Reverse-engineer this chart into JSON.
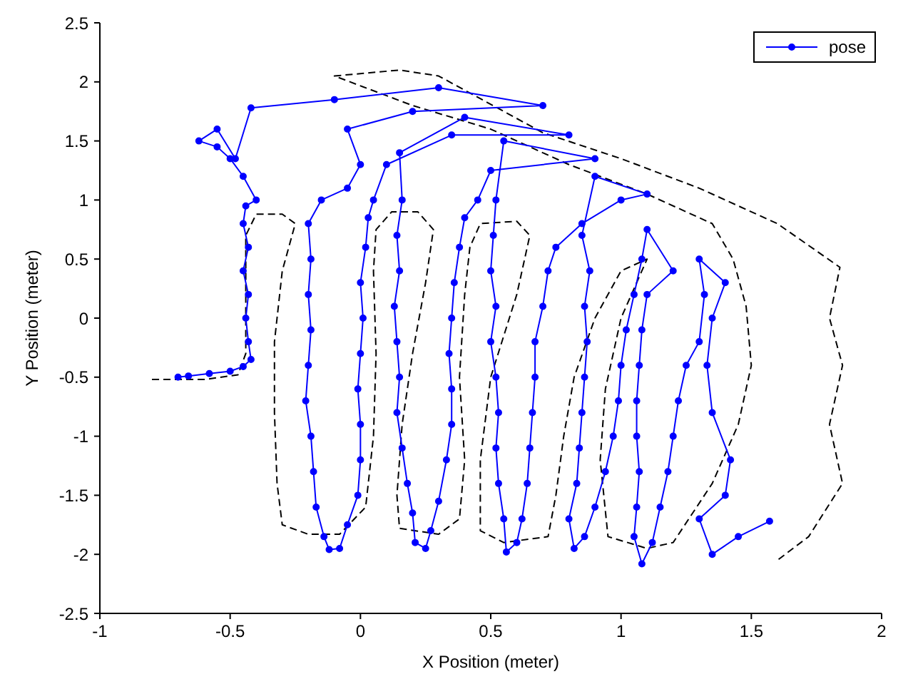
{
  "chart_data": {
    "type": "line",
    "xlabel": "X Position (meter)",
    "ylabel": "Y Position (meter)",
    "xlim": [
      -1,
      2
    ],
    "ylim": [
      -2.5,
      2.5
    ],
    "xticks": [
      -1,
      -0.5,
      0,
      0.5,
      1,
      1.5,
      2
    ],
    "yticks": [
      -2.5,
      -2,
      -1.5,
      -1,
      -0.5,
      0,
      0.5,
      1,
      1.5,
      2,
      2.5
    ],
    "grid": false,
    "legend": "top right",
    "series": [
      {
        "color": "#000000",
        "line_style": "dashed",
        "marker": "none",
        "x": [
          -0.8,
          -0.6,
          -0.47,
          -0.44,
          -0.44,
          -0.44,
          -0.4,
          -0.3,
          -0.25,
          -0.3,
          -0.33,
          -0.33,
          -0.32,
          -0.3,
          -0.2,
          -0.08,
          0.02,
          0.05,
          0.06,
          0.05,
          0.06,
          0.12,
          0.22,
          0.28,
          0.25,
          0.2,
          0.16,
          0.14,
          0.15,
          0.3,
          0.38,
          0.4,
          0.38,
          0.4,
          0.42,
          0.46,
          0.6,
          0.65,
          0.6,
          0.5,
          0.46,
          0.46,
          0.55,
          0.72,
          0.75,
          0.78,
          0.82,
          0.9,
          1.0,
          1.1,
          1.0,
          0.94,
          0.92,
          0.95,
          1.1,
          1.2,
          1.35,
          1.45,
          1.5,
          1.48,
          1.43,
          1.35,
          1.1,
          0.8,
          0.5,
          0.2,
          -0.1,
          0.15,
          0.3,
          0.7,
          1.0,
          1.3,
          1.6,
          1.84,
          1.8,
          1.85,
          1.8,
          1.85,
          1.72,
          1.6
        ],
        "values": [
          -0.52,
          -0.52,
          -0.48,
          -0.3,
          0.2,
          0.7,
          0.88,
          0.88,
          0.8,
          0.4,
          -0.2,
          -0.8,
          -1.4,
          -1.75,
          -1.83,
          -1.83,
          -1.6,
          -1.0,
          -0.3,
          0.4,
          0.75,
          0.9,
          0.9,
          0.75,
          0.3,
          -0.3,
          -0.9,
          -1.5,
          -1.78,
          -1.83,
          -1.7,
          -1.2,
          -0.5,
          0.2,
          0.6,
          0.8,
          0.82,
          0.7,
          0.2,
          -0.5,
          -1.2,
          -1.8,
          -1.9,
          -1.85,
          -1.5,
          -1.0,
          -0.5,
          0.0,
          0.4,
          0.5,
          0.0,
          -0.6,
          -1.2,
          -1.85,
          -1.95,
          -1.9,
          -1.4,
          -0.9,
          -0.4,
          0.1,
          0.5,
          0.8,
          1.05,
          1.3,
          1.6,
          1.8,
          2.05,
          2.1,
          2.05,
          1.57,
          1.35,
          1.1,
          0.8,
          0.43,
          0.0,
          -0.4,
          -0.9,
          -1.4,
          -1.85,
          -2.05
        ]
      },
      {
        "name": "pose",
        "color": "#0000ff",
        "line_style": "solid",
        "marker": "circle",
        "x": [
          -0.7,
          -0.66,
          -0.58,
          -0.5,
          -0.45,
          -0.42,
          -0.43,
          -0.44,
          -0.43,
          -0.45,
          -0.43,
          -0.45,
          -0.44,
          -0.4,
          -0.45,
          -0.5,
          -0.55,
          -0.62,
          -0.55,
          -0.48,
          -0.42,
          -0.1,
          0.3,
          0.7,
          0.2,
          -0.05,
          0.0,
          -0.05,
          -0.15,
          -0.2,
          -0.19,
          -0.2,
          -0.19,
          -0.2,
          -0.21,
          -0.19,
          -0.18,
          -0.17,
          -0.14,
          -0.12,
          -0.08,
          -0.05,
          -0.01,
          0.0,
          0.0,
          -0.01,
          0.0,
          0.01,
          0.0,
          0.02,
          0.03,
          0.05,
          0.1,
          0.35,
          0.8,
          0.4,
          0.15,
          0.16,
          0.14,
          0.15,
          0.13,
          0.14,
          0.15,
          0.14,
          0.16,
          0.18,
          0.2,
          0.21,
          0.25,
          0.27,
          0.3,
          0.33,
          0.35,
          0.35,
          0.34,
          0.35,
          0.36,
          0.38,
          0.4,
          0.45,
          0.5,
          0.9,
          0.55,
          0.52,
          0.51,
          0.5,
          0.52,
          0.5,
          0.52,
          0.53,
          0.52,
          0.53,
          0.55,
          0.56,
          0.6,
          0.62,
          0.64,
          0.65,
          0.66,
          0.67,
          0.67,
          0.7,
          0.72,
          0.75,
          0.85,
          1.0,
          1.1,
          0.9,
          0.85,
          0.88,
          0.86,
          0.87,
          0.86,
          0.85,
          0.84,
          0.83,
          0.8,
          0.82,
          0.86,
          0.9,
          0.94,
          0.97,
          0.99,
          1.0,
          1.02,
          1.05,
          1.08,
          1.1,
          1.2,
          1.1,
          1.08,
          1.07,
          1.06,
          1.06,
          1.07,
          1.06,
          1.05,
          1.08,
          1.12,
          1.15,
          1.18,
          1.2,
          1.22,
          1.25,
          1.3,
          1.32,
          1.3,
          1.4,
          1.35,
          1.33,
          1.35,
          1.42,
          1.4,
          1.3,
          1.35,
          1.45,
          1.57
        ],
        "values": [
          -0.5,
          -0.49,
          -0.47,
          -0.45,
          -0.41,
          -0.35,
          -0.2,
          0.0,
          0.2,
          0.4,
          0.6,
          0.8,
          0.95,
          1.0,
          1.2,
          1.35,
          1.45,
          1.5,
          1.6,
          1.35,
          1.78,
          1.85,
          1.95,
          1.8,
          1.75,
          1.6,
          1.3,
          1.1,
          1.0,
          0.8,
          0.5,
          0.2,
          -0.1,
          -0.4,
          -0.7,
          -1.0,
          -1.3,
          -1.6,
          -1.85,
          -1.96,
          -1.95,
          -1.75,
          -1.5,
          -1.2,
          -0.9,
          -0.6,
          -0.3,
          0.0,
          0.3,
          0.6,
          0.85,
          1.0,
          1.3,
          1.55,
          1.55,
          1.7,
          1.4,
          1.0,
          0.7,
          0.4,
          0.1,
          -0.2,
          -0.5,
          -0.8,
          -1.1,
          -1.4,
          -1.65,
          -1.9,
          -1.95,
          -1.8,
          -1.55,
          -1.2,
          -0.9,
          -0.6,
          -0.3,
          0.0,
          0.3,
          0.6,
          0.85,
          1.0,
          1.25,
          1.35,
          1.5,
          1.0,
          0.7,
          0.4,
          0.1,
          -0.2,
          -0.5,
          -0.8,
          -1.1,
          -1.4,
          -1.7,
          -1.98,
          -1.9,
          -1.7,
          -1.4,
          -1.1,
          -0.8,
          -0.5,
          -0.2,
          0.1,
          0.4,
          0.6,
          0.8,
          1.0,
          1.05,
          1.2,
          0.7,
          0.4,
          0.1,
          -0.2,
          -0.5,
          -0.8,
          -1.1,
          -1.4,
          -1.7,
          -1.95,
          -1.85,
          -1.6,
          -1.3,
          -1.0,
          -0.7,
          -0.4,
          -0.1,
          0.2,
          0.5,
          0.75,
          0.4,
          0.2,
          -0.1,
          -0.4,
          -0.7,
          -1.0,
          -1.3,
          -1.6,
          -1.85,
          -2.08,
          -1.9,
          -1.6,
          -1.3,
          -1.0,
          -0.7,
          -0.4,
          -0.2,
          0.2,
          0.5,
          0.3,
          0.0,
          -0.4,
          -0.8,
          -1.2,
          -1.5,
          -1.7,
          -2.0,
          -1.85,
          -1.72
        ]
      }
    ]
  }
}
